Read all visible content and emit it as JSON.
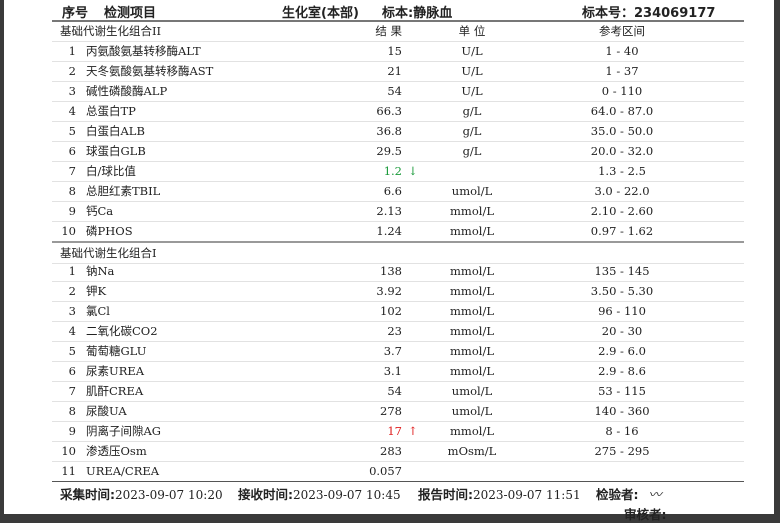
{
  "header": {
    "seq": "序号",
    "item": "检测项目",
    "dept": "生化室(本部)",
    "specimen": "标本:静脉血",
    "specimen_no": "标本号：234069177"
  },
  "columns": {
    "result": "结  果",
    "unit": "单  位",
    "ref": "参考区间"
  },
  "colors": {
    "high": "#e02020",
    "low": "#1a9a3a"
  },
  "sections": [
    {
      "title": "基础代谢生化组合II",
      "rows": [
        {
          "no": "1",
          "name": "丙氨酸氨基转移酶ALT",
          "result": "15",
          "flag": "",
          "unit": "U/L",
          "ref": "1 - 40"
        },
        {
          "no": "2",
          "name": "天冬氨酸氨基转移酶AST",
          "result": "21",
          "flag": "",
          "unit": "U/L",
          "ref": "1 - 37"
        },
        {
          "no": "3",
          "name": "碱性磷酸酶ALP",
          "result": "54",
          "flag": "",
          "unit": "U/L",
          "ref": "0 - 110"
        },
        {
          "no": "4",
          "name": "总蛋白TP",
          "result": "66.3",
          "flag": "",
          "unit": "g/L",
          "ref": "64.0 - 87.0"
        },
        {
          "no": "5",
          "name": "白蛋白ALB",
          "result": "36.8",
          "flag": "",
          "unit": "g/L",
          "ref": "35.0 - 50.0"
        },
        {
          "no": "6",
          "name": "球蛋白GLB",
          "result": "29.5",
          "flag": "",
          "unit": "g/L",
          "ref": "20.0 - 32.0"
        },
        {
          "no": "7",
          "name": "白/球比值",
          "result": "1.2",
          "flag": "↓",
          "unit": "",
          "ref": "1.3 - 2.5"
        },
        {
          "no": "8",
          "name": "总胆红素TBIL",
          "result": "6.6",
          "flag": "",
          "unit": "umol/L",
          "ref": "3.0 - 22.0"
        },
        {
          "no": "9",
          "name": "钙Ca",
          "result": "2.13",
          "flag": "",
          "unit": "mmol/L",
          "ref": "2.10 - 2.60"
        },
        {
          "no": "10",
          "name": "磷PHOS",
          "result": "1.24",
          "flag": "",
          "unit": "mmol/L",
          "ref": "0.97 - 1.62"
        }
      ]
    },
    {
      "title": "基础代谢生化组合I",
      "rows": [
        {
          "no": "1",
          "name": "钠Na",
          "result": "138",
          "flag": "",
          "unit": "mmol/L",
          "ref": "135 - 145"
        },
        {
          "no": "2",
          "name": "钾K",
          "result": "3.92",
          "flag": "",
          "unit": "mmol/L",
          "ref": "3.50 - 5.30"
        },
        {
          "no": "3",
          "name": "氯Cl",
          "result": "102",
          "flag": "",
          "unit": "mmol/L",
          "ref": "96 - 110"
        },
        {
          "no": "4",
          "name": "二氧化碳CO2",
          "result": "23",
          "flag": "",
          "unit": "mmol/L",
          "ref": "20 - 30"
        },
        {
          "no": "5",
          "name": "葡萄糖GLU",
          "result": "3.7",
          "flag": "",
          "unit": "mmol/L",
          "ref": "2.9 - 6.0"
        },
        {
          "no": "6",
          "name": "尿素UREA",
          "result": "3.1",
          "flag": "",
          "unit": "mmol/L",
          "ref": "2.9 - 8.6"
        },
        {
          "no": "7",
          "name": "肌酐CREA",
          "result": "54",
          "flag": "",
          "unit": "umol/L",
          "ref": "53 - 115"
        },
        {
          "no": "8",
          "name": "尿酸UA",
          "result": "278",
          "flag": "",
          "unit": "umol/L",
          "ref": "140 - 360"
        },
        {
          "no": "9",
          "name": "阴离子间隙AG",
          "result": "17",
          "flag": "↑",
          "unit": "mmol/L",
          "ref": "8 - 16"
        },
        {
          "no": "10",
          "name": "渗透压Osm",
          "result": "283",
          "flag": "",
          "unit": "mOsm/L",
          "ref": "275 - 295"
        },
        {
          "no": "11",
          "name": "UREA/CREA",
          "result": "0.057",
          "flag": "",
          "unit": "",
          "ref": ""
        }
      ]
    }
  ],
  "footer": {
    "collect_label": "采集时间:",
    "collect": "2023-09-07 10:20",
    "receive_label": "接收时间:",
    "receive": "2023-09-07 10:45",
    "report_label": "报告时间:",
    "report": "2023-09-07 11:51",
    "tester_label": "检验者:",
    "reviewer_label": "审核者:"
  }
}
